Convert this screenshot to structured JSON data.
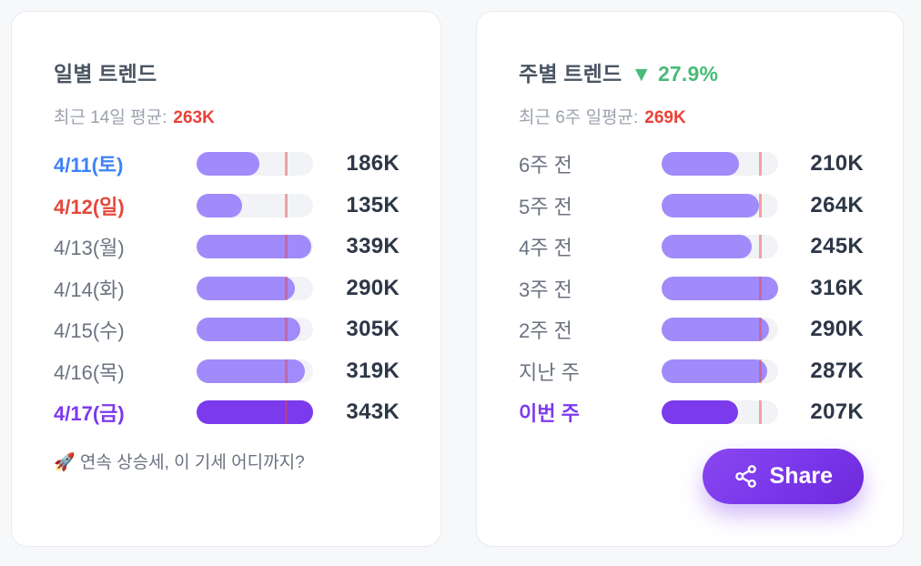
{
  "colors": {
    "page_bg": "#f7f8fa",
    "title_color": "#4b5563",
    "muted_gray": "#9ca3af",
    "label_gray": "#6b7280",
    "value_dark": "#2d3748",
    "average_red": "#e9423a",
    "trend_green": "#48bb78",
    "saturday_blue": "#3f82f6",
    "sunday_red": "#e5493d",
    "highlight_purple": "#7c3aed",
    "bar_fill": "#a18bfa",
    "bar_fill_dark": "#7c3aed",
    "bar_track": "#f2f3f6"
  },
  "daily_card": {
    "title": "일별 트렌드",
    "avg_label": "최근 14일 평균:",
    "avg_value_text": "263K",
    "avg_value": 263,
    "rows": [
      {
        "label": "4/11(토)",
        "value": 186,
        "value_text": "186K",
        "label_style": "blue",
        "bar_style": "light"
      },
      {
        "label": "4/12(일)",
        "value": 135,
        "value_text": "135K",
        "label_style": "red",
        "bar_style": "light"
      },
      {
        "label": "4/13(월)",
        "value": 339,
        "value_text": "339K",
        "label_style": "normal",
        "bar_style": "light"
      },
      {
        "label": "4/14(화)",
        "value": 290,
        "value_text": "290K",
        "label_style": "normal",
        "bar_style": "light"
      },
      {
        "label": "4/15(수)",
        "value": 305,
        "value_text": "305K",
        "label_style": "normal",
        "bar_style": "light"
      },
      {
        "label": "4/16(목)",
        "value": 319,
        "value_text": "319K",
        "label_style": "normal",
        "bar_style": "light"
      },
      {
        "label": "4/17(금)",
        "value": 343,
        "value_text": "343K",
        "label_style": "purple",
        "bar_style": "dark"
      }
    ],
    "footer": "🚀 연속 상승세, 이 기세 어디까지?"
  },
  "weekly_card": {
    "title": "주별 트렌드",
    "delta_text": "▼ 27.9%",
    "avg_label": "최근 6주 일평균:",
    "avg_value_text": "269K",
    "avg_value": 269,
    "rows": [
      {
        "label": "6주 전",
        "value": 210,
        "value_text": "210K",
        "label_style": "normal",
        "bar_style": "light"
      },
      {
        "label": "5주 전",
        "value": 264,
        "value_text": "264K",
        "label_style": "normal",
        "bar_style": "light"
      },
      {
        "label": "4주 전",
        "value": 245,
        "value_text": "245K",
        "label_style": "normal",
        "bar_style": "light"
      },
      {
        "label": "3주 전",
        "value": 316,
        "value_text": "316K",
        "label_style": "normal",
        "bar_style": "light"
      },
      {
        "label": "2주 전",
        "value": 290,
        "value_text": "290K",
        "label_style": "normal",
        "bar_style": "light"
      },
      {
        "label": "지난 주",
        "value": 287,
        "value_text": "287K",
        "label_style": "normal",
        "bar_style": "light"
      },
      {
        "label": "이번 주",
        "value": 207,
        "value_text": "207K",
        "label_style": "purple",
        "bar_style": "dark"
      }
    ],
    "share_button_label": "Share"
  },
  "chart_data": [
    {
      "type": "bar",
      "orientation": "horizontal",
      "title": "일별 트렌드",
      "categories": [
        "4/11(토)",
        "4/12(일)",
        "4/13(월)",
        "4/14(화)",
        "4/15(수)",
        "4/16(목)",
        "4/17(금)"
      ],
      "values": [
        186,
        135,
        339,
        290,
        305,
        319,
        343
      ],
      "unit": "K",
      "xlim": [
        0,
        343
      ],
      "average_line": 263,
      "average_label": "최근 14일 평균: 263K",
      "annotation": "🚀 연속 상승세, 이 기세 어디까지?",
      "grid": false,
      "legend": false
    },
    {
      "type": "bar",
      "orientation": "horizontal",
      "title": "주별 트렌드",
      "delta": "▼ 27.9%",
      "categories": [
        "6주 전",
        "5주 전",
        "4주 전",
        "3주 전",
        "2주 전",
        "지난 주",
        "이번 주"
      ],
      "values": [
        210,
        264,
        245,
        316,
        290,
        287,
        207
      ],
      "unit": "K",
      "xlim": [
        0,
        316
      ],
      "average_line": 269,
      "average_label": "최근 6주 일평균: 269K",
      "grid": false,
      "legend": false
    }
  ]
}
